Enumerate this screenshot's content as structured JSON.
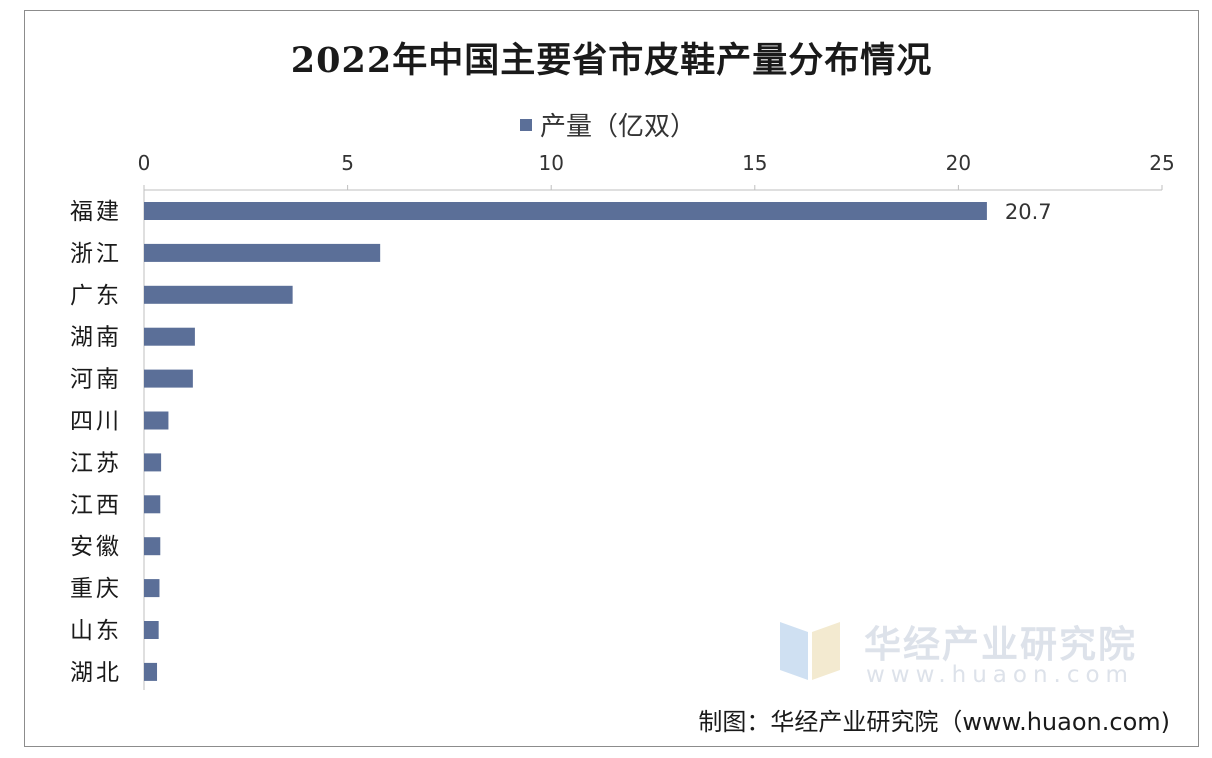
{
  "chart_data": {
    "type": "bar",
    "orientation": "horizontal",
    "title": "2022年中国主要省市皮鞋产量分布情况",
    "categories": [
      "福建",
      "浙江",
      "广东",
      "湖南",
      "河南",
      "四川",
      "江苏",
      "江西",
      "安徽",
      "重庆",
      "山东",
      "湖北"
    ],
    "series": [
      {
        "name": "产量（亿双）",
        "values": [
          20.7,
          5.8,
          3.65,
          1.25,
          1.2,
          0.6,
          0.42,
          0.4,
          0.4,
          0.38,
          0.36,
          0.32
        ],
        "color": "#5b6f98"
      }
    ],
    "data_labels": [
      {
        "category": "福建",
        "text": "20.7"
      }
    ],
    "xlim": [
      0,
      25
    ],
    "x_ticks": [
      "0",
      "5",
      "10",
      "15",
      "20",
      "25"
    ],
    "x_axis_position": "top",
    "grid": false,
    "legend_position": "top"
  },
  "source": "制图：华经产业研究院（www.huaon.com)",
  "watermark": {
    "name": "华经产业研究院",
    "url": "www.huaon.com"
  },
  "colors": {
    "bar": "#5b6f98",
    "axis": "#bfbfbf",
    "text": "#333333",
    "watermark": "#dde2ea"
  }
}
